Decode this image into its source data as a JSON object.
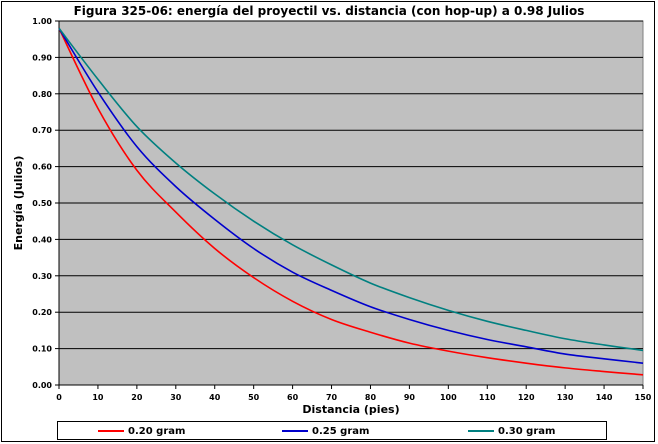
{
  "chart_data": {
    "type": "line",
    "title": "Figura 325-06: energía del proyectil vs. distancia (con hop-up) a 0.98 Julios",
    "xlabel": "Distancia (pies)",
    "ylabel": "Energía (Julios)",
    "xlim": [
      0,
      150
    ],
    "ylim": [
      0,
      1.0
    ],
    "x_ticks": [
      "0",
      "10",
      "20",
      "30",
      "40",
      "50",
      "60",
      "70",
      "80",
      "90",
      "100",
      "110",
      "120",
      "130",
      "140",
      "150"
    ],
    "y_ticks": [
      "0.00",
      "0.10",
      "0.20",
      "0.30",
      "0.40",
      "0.50",
      "0.60",
      "0.70",
      "0.80",
      "0.90",
      "1.00"
    ],
    "grid": "horizontal",
    "background": "#c0c0c0",
    "legend_position": "bottom",
    "x": [
      0,
      10,
      20,
      30,
      40,
      50,
      60,
      70,
      80,
      90,
      100,
      110,
      120,
      130,
      140,
      150
    ],
    "series": [
      {
        "name": "0.20 gram",
        "color": "#ff0000",
        "values": [
          0.98,
          0.76,
          0.59,
          0.475,
          0.375,
          0.295,
          0.23,
          0.18,
          0.145,
          0.115,
          0.093,
          0.075,
          0.06,
          0.047,
          0.037,
          0.028
        ]
      },
      {
        "name": "0.25 gram",
        "color": "#0000cc",
        "values": [
          0.98,
          0.805,
          0.655,
          0.545,
          0.455,
          0.375,
          0.31,
          0.26,
          0.215,
          0.18,
          0.15,
          0.125,
          0.105,
          0.085,
          0.072,
          0.06
        ]
      },
      {
        "name": "0.30 gram",
        "color": "#008080",
        "values": [
          0.98,
          0.84,
          0.71,
          0.61,
          0.525,
          0.45,
          0.385,
          0.33,
          0.28,
          0.24,
          0.205,
          0.175,
          0.15,
          0.127,
          0.11,
          0.095
        ]
      }
    ]
  }
}
